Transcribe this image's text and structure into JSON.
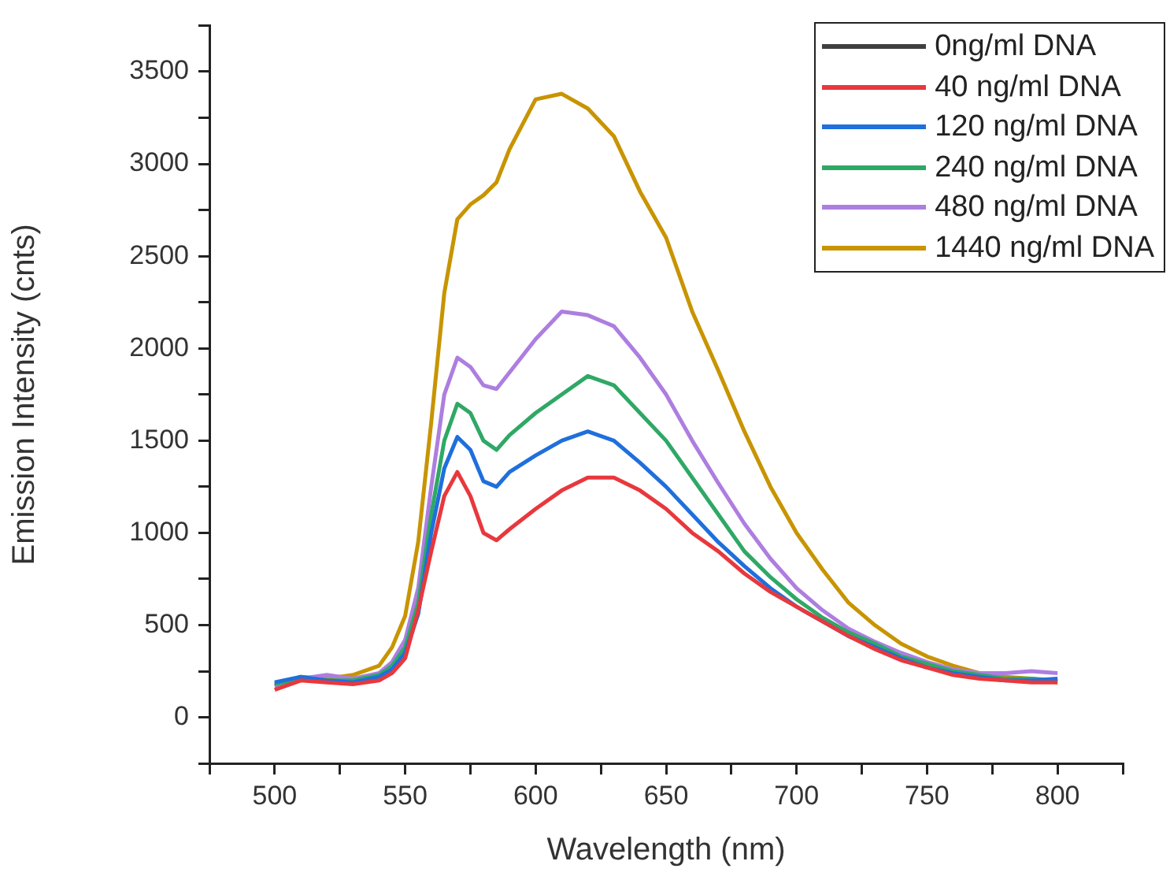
{
  "chart_data": {
    "type": "line",
    "xlabel": "Wavelength (nm)",
    "ylabel": "Emission Intensity (cnts)",
    "x": [
      500,
      510,
      520,
      530,
      540,
      545,
      550,
      555,
      560,
      565,
      570,
      575,
      580,
      585,
      590,
      600,
      610,
      620,
      630,
      640,
      650,
      660,
      670,
      680,
      690,
      700,
      710,
      720,
      730,
      740,
      750,
      760,
      770,
      780,
      790,
      800
    ],
    "series": [
      {
        "name": "0ng/ml DNA",
        "color": "#404040",
        "values": [
          null,
          null,
          null,
          null,
          null,
          null,
          null,
          null,
          null,
          null,
          null,
          null,
          null,
          null,
          null,
          null,
          null,
          null,
          null,
          null,
          null,
          null,
          null,
          null,
          null,
          null,
          null,
          null,
          null,
          null,
          null,
          null,
          null,
          null,
          null,
          null
        ]
      },
      {
        "name": "40 ng/ml DNA",
        "color": "#e8383d",
        "values": [
          150,
          200,
          190,
          180,
          200,
          240,
          320,
          580,
          900,
          1200,
          1330,
          1200,
          1000,
          960,
          1020,
          1130,
          1230,
          1300,
          1300,
          1230,
          1130,
          1000,
          900,
          780,
          680,
          600,
          520,
          440,
          370,
          310,
          270,
          230,
          210,
          200,
          190,
          190
        ]
      },
      {
        "name": "120 ng/ml DNA",
        "color": "#1f6fdc",
        "values": [
          190,
          220,
          200,
          190,
          220,
          260,
          350,
          560,
          1000,
          1350,
          1520,
          1450,
          1280,
          1250,
          1330,
          1420,
          1500,
          1550,
          1500,
          1380,
          1250,
          1100,
          950,
          820,
          700,
          600,
          520,
          440,
          380,
          320,
          270,
          240,
          220,
          200,
          200,
          210
        ]
      },
      {
        "name": "240 ng/ml DNA",
        "color": "#2fa866",
        "values": [
          180,
          210,
          200,
          200,
          230,
          280,
          380,
          620,
          1100,
          1500,
          1700,
          1650,
          1500,
          1450,
          1530,
          1650,
          1750,
          1850,
          1800,
          1650,
          1500,
          1300,
          1100,
          900,
          760,
          640,
          540,
          460,
          400,
          330,
          290,
          250,
          230,
          210,
          210,
          200
        ]
      },
      {
        "name": "480 ng/ml DNA",
        "color": "#ad7ee0",
        "values": [
          170,
          210,
          230,
          210,
          240,
          300,
          420,
          700,
          1250,
          1750,
          1950,
          1900,
          1800,
          1780,
          1870,
          2050,
          2200,
          2180,
          2120,
          1950,
          1750,
          1500,
          1270,
          1050,
          860,
          700,
          580,
          480,
          410,
          350,
          300,
          260,
          240,
          240,
          250,
          240
        ]
      },
      {
        "name": "1440 ng/ml DNA",
        "color": "#c89400",
        "values": [
          170,
          220,
          210,
          230,
          280,
          380,
          550,
          950,
          1600,
          2300,
          2700,
          2780,
          2830,
          2900,
          3080,
          3350,
          3380,
          3300,
          3150,
          2850,
          2600,
          2200,
          1880,
          1550,
          1250,
          1000,
          800,
          620,
          500,
          400,
          330,
          280,
          240,
          220,
          210,
          190
        ]
      }
    ],
    "xlim": [
      475,
      825
    ],
    "xticks": [
      {
        "value": 475,
        "label": null
      },
      500,
      {
        "value": 525,
        "label": null
      },
      550,
      {
        "value": 575,
        "label": null
      },
      600,
      {
        "value": 625,
        "label": null
      },
      650,
      {
        "value": 675,
        "label": null
      },
      700,
      {
        "value": 725,
        "label": null
      },
      750,
      {
        "value": 775,
        "label": null
      },
      800,
      {
        "value": 825,
        "label": null
      }
    ],
    "ylim": [
      -250,
      3750
    ],
    "yticks": [
      {
        "value": -250,
        "label": null
      },
      0,
      {
        "value": 250,
        "label": null
      },
      500,
      {
        "value": 750,
        "label": null
      },
      1000,
      {
        "value": 1250,
        "label": null
      },
      1500,
      {
        "value": 1750,
        "label": null
      },
      2000,
      {
        "value": 2250,
        "label": null
      },
      2500,
      {
        "value": 2750,
        "label": null
      },
      3000,
      {
        "value": 3250,
        "label": null
      },
      3500,
      {
        "value": 3750,
        "label": null
      }
    ],
    "grid": false,
    "legend": "top right",
    "marker": "none",
    "line_style": "solid"
  }
}
